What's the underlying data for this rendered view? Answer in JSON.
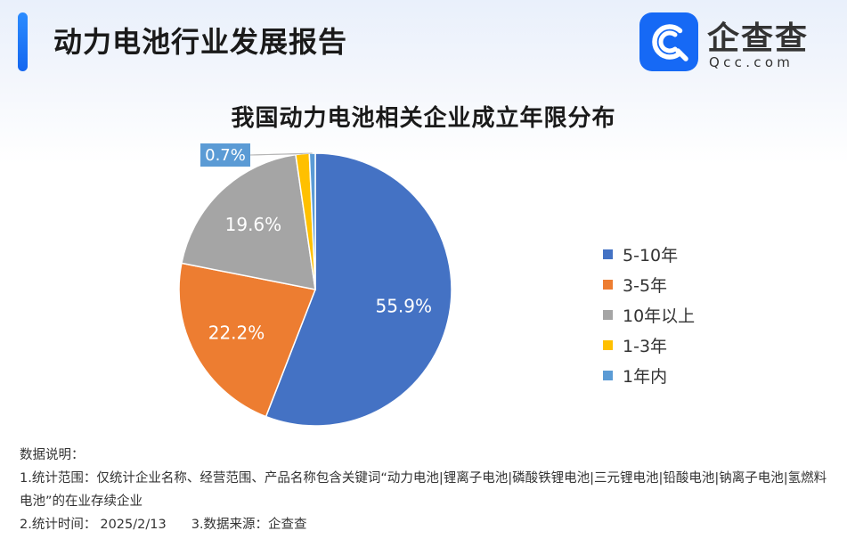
{
  "header": {
    "title": "动力电池行业发展报告",
    "brand_name": "企查查",
    "brand_domain": "Qcc.com"
  },
  "chart_data": {
    "type": "pie",
    "title": "我国动力电池相关企业成立年限分布",
    "start_angle": 0,
    "direction": "clockwise",
    "legend_position": "right",
    "slices": [
      {
        "label": "5-10年",
        "value": 55.9,
        "display": "55.9%",
        "color": "#4472c4"
      },
      {
        "label": "3-5年",
        "value": 22.2,
        "display": "22.2%",
        "color": "#ed7d31"
      },
      {
        "label": "10年以上",
        "value": 19.6,
        "display": "19.6%",
        "color": "#a5a5a5"
      },
      {
        "label": "1-3年",
        "value": 1.6,
        "display": "1.6%",
        "color": "#ffc000"
      },
      {
        "label": "1年内",
        "value": 0.7,
        "display": "0.7%",
        "color": "#5b9bd5"
      }
    ]
  },
  "notes": {
    "heading": "数据说明：",
    "scope": "1.统计范围：仅统计企业名称、经营范围、产品名称包含关键词“动力电池|锂离子电池|磷酸铁锂电池|三元锂电池|铅酸电池|钠离子电池|氢燃料电池”的在业存续企业",
    "time_label": "2.统计时间：",
    "time_value": "2025/2/13",
    "source": "3.数据来源：企查查"
  }
}
